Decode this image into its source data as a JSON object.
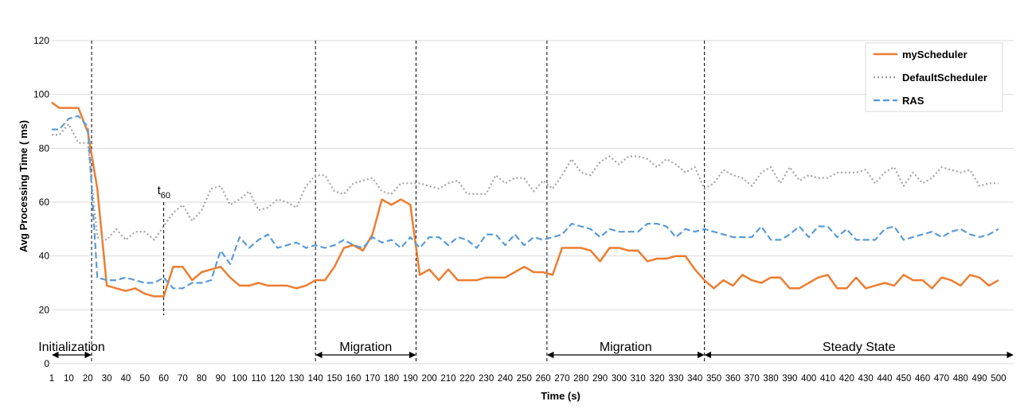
{
  "chart_data": {
    "type": "line",
    "ylabel": "Avg Processing Time ( ms)",
    "xlabel": "Time (s)",
    "ylim": [
      0,
      120
    ],
    "yticks": [
      0,
      20,
      40,
      60,
      80,
      100,
      120
    ],
    "grid": true,
    "legend_position": "top-right",
    "x": [
      1,
      5,
      10,
      15,
      20,
      25,
      30,
      35,
      40,
      45,
      50,
      55,
      60,
      65,
      70,
      75,
      80,
      85,
      90,
      95,
      100,
      105,
      110,
      115,
      120,
      125,
      130,
      135,
      140,
      145,
      150,
      155,
      160,
      165,
      170,
      175,
      180,
      185,
      190,
      195,
      200,
      205,
      210,
      215,
      220,
      225,
      230,
      235,
      240,
      245,
      250,
      255,
      260,
      265,
      270,
      275,
      280,
      285,
      290,
      295,
      300,
      305,
      310,
      315,
      320,
      325,
      330,
      335,
      340,
      345,
      350,
      355,
      360,
      365,
      370,
      375,
      380,
      385,
      390,
      395,
      400,
      405,
      410,
      415,
      420,
      425,
      430,
      435,
      440,
      445,
      450,
      455,
      460,
      465,
      470,
      475,
      480,
      485,
      490,
      495,
      500
    ],
    "xticks": [
      "1",
      "10",
      "20",
      "30",
      "40",
      "50",
      "60",
      "70",
      "80",
      "90",
      "100",
      "110",
      "120",
      "130",
      "140",
      "150",
      "160",
      "170",
      "180",
      "190",
      "200",
      "210",
      "220",
      "230",
      "240",
      "250",
      "260",
      "270",
      "280",
      "290",
      "300",
      "310",
      "320",
      "330",
      "340",
      "350",
      "360",
      "370",
      "380",
      "390",
      "400",
      "410",
      "420",
      "430",
      "440",
      "450",
      "460",
      "470",
      "480",
      "490",
      "500"
    ],
    "xtick_values": [
      1,
      10,
      20,
      30,
      40,
      50,
      60,
      70,
      80,
      90,
      100,
      110,
      120,
      130,
      140,
      150,
      160,
      170,
      180,
      190,
      200,
      210,
      220,
      230,
      240,
      250,
      260,
      270,
      280,
      290,
      300,
      310,
      320,
      330,
      340,
      350,
      360,
      370,
      380,
      390,
      400,
      410,
      420,
      430,
      440,
      450,
      460,
      470,
      480,
      490,
      500
    ],
    "series": [
      {
        "name": "myScheduler",
        "color": "#ed7d31",
        "style": "solid",
        "values": [
          97,
          95,
          95,
          95,
          86,
          65,
          29,
          28,
          27,
          28,
          26,
          25,
          25,
          36,
          36,
          31,
          34,
          35,
          36,
          32,
          29,
          29,
          30,
          29,
          29,
          29,
          28,
          29,
          31,
          31,
          36,
          43,
          44,
          42,
          48,
          61,
          59,
          61,
          59,
          33,
          35,
          31,
          35,
          31,
          31,
          31,
          32,
          32,
          32,
          34,
          36,
          34,
          34,
          33,
          43,
          43,
          43,
          42,
          38,
          43,
          43,
          42,
          42,
          38,
          39,
          39,
          40,
          40,
          35,
          31,
          28,
          31,
          29,
          33,
          31,
          30,
          32,
          32,
          28,
          28,
          30,
          32,
          33,
          28,
          28,
          32,
          28,
          29,
          30,
          29,
          33,
          31,
          31,
          28,
          32,
          31,
          29,
          33,
          32,
          29,
          31
        ]
      },
      {
        "name": "DefaultScheduler",
        "color": "#a5a5a5",
        "style": "dotted",
        "values": [
          85,
          85,
          89,
          82,
          82,
          47,
          46,
          50,
          46,
          49,
          49,
          46,
          51,
          56,
          59,
          53,
          57,
          65,
          66,
          59,
          61,
          64,
          57,
          58,
          61,
          60,
          58,
          66,
          70,
          70,
          64,
          63,
          67,
          68,
          69,
          64,
          63,
          67,
          67,
          67,
          66,
          65,
          67,
          68,
          63,
          63,
          63,
          70,
          67,
          69,
          69,
          64,
          68,
          65,
          70,
          76,
          71,
          70,
          75,
          77,
          74,
          77,
          77,
          76,
          73,
          76,
          74,
          71,
          73,
          65,
          67,
          72,
          70,
          69,
          66,
          71,
          73,
          67,
          73,
          68,
          70,
          69,
          69,
          71,
          71,
          71,
          72,
          67,
          71,
          73,
          66,
          71,
          67,
          69,
          73,
          72,
          71,
          72,
          66,
          67,
          67
        ]
      },
      {
        "name": "RAS",
        "color": "#5b9bd5",
        "style": "dashed",
        "values": [
          87,
          87,
          91,
          92,
          88,
          32,
          31,
          31,
          32,
          31,
          30,
          30,
          32,
          28,
          28,
          30,
          30,
          31,
          42,
          37,
          47,
          43,
          46,
          48,
          43,
          44,
          45,
          43,
          44,
          43,
          44,
          46,
          44,
          43,
          47,
          45,
          46,
          43,
          47,
          43,
          47,
          47,
          44,
          47,
          46,
          43,
          48,
          48,
          44,
          48,
          44,
          47,
          46,
          47,
          48,
          52,
          51,
          50,
          47,
          50,
          49,
          49,
          49,
          52,
          52,
          51,
          47,
          50,
          49,
          50,
          49,
          48,
          47,
          47,
          47,
          51,
          46,
          46,
          48,
          51,
          47,
          51,
          51,
          47,
          50,
          46,
          46,
          46,
          50,
          51,
          46,
          47,
          48,
          49,
          47,
          49,
          50,
          48,
          47,
          48,
          50
        ]
      }
    ],
    "phase_lines_x": [
      22,
      140,
      193,
      262,
      345
    ],
    "t60_marker": {
      "label": "t",
      "subscript": "60",
      "x": 60,
      "y_top": 60,
      "y_bottom": 18
    },
    "phases": [
      {
        "label": "Initialization",
        "x_start": 1,
        "x_end": 22
      },
      {
        "label": "Migration",
        "x_start": 140,
        "x_end": 193
      },
      {
        "label": "Migration",
        "x_start": 262,
        "x_end": 345
      },
      {
        "label": "Steady State",
        "x_start": 345,
        "x_end": 508
      }
    ]
  }
}
